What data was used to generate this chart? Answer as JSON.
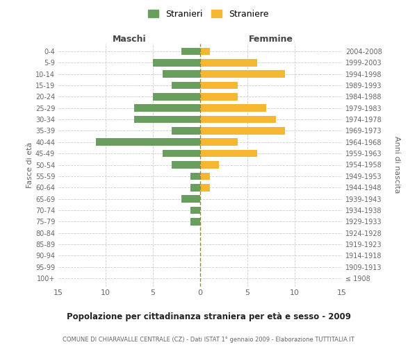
{
  "age_groups": [
    "100+",
    "95-99",
    "90-94",
    "85-89",
    "80-84",
    "75-79",
    "70-74",
    "65-69",
    "60-64",
    "55-59",
    "50-54",
    "45-49",
    "40-44",
    "35-39",
    "30-34",
    "25-29",
    "20-24",
    "15-19",
    "10-14",
    "5-9",
    "0-4"
  ],
  "birth_years": [
    "≤ 1908",
    "1909-1913",
    "1914-1918",
    "1919-1923",
    "1924-1928",
    "1929-1933",
    "1934-1938",
    "1939-1943",
    "1944-1948",
    "1949-1953",
    "1954-1958",
    "1959-1963",
    "1964-1968",
    "1969-1973",
    "1974-1978",
    "1979-1983",
    "1984-1988",
    "1989-1993",
    "1994-1998",
    "1999-2003",
    "2004-2008"
  ],
  "maschi": [
    0,
    0,
    0,
    0,
    0,
    1,
    1,
    2,
    1,
    1,
    3,
    4,
    11,
    3,
    7,
    7,
    5,
    3,
    4,
    5,
    2
  ],
  "femmine": [
    0,
    0,
    0,
    0,
    0,
    0,
    0,
    0,
    1,
    1,
    2,
    6,
    4,
    9,
    8,
    7,
    4,
    4,
    9,
    6,
    1
  ],
  "maschi_color": "#6a9e5e",
  "femmine_color": "#f5b731",
  "title": "Popolazione per cittadinanza straniera per età e sesso - 2009",
  "subtitle": "COMUNE DI CHIARAVALLE CENTRALE (CZ) - Dati ISTAT 1° gennaio 2009 - Elaborazione TUTTITALIA.IT",
  "xlabel_left": "Maschi",
  "xlabel_right": "Femmine",
  "ylabel_left": "Fasce di età",
  "ylabel_right": "Anni di nascita",
  "xlim": 15,
  "legend_stranieri": "Stranieri",
  "legend_straniere": "Straniere",
  "grid_color": "#cccccc",
  "background_color": "#ffffff",
  "text_color": "#666666"
}
